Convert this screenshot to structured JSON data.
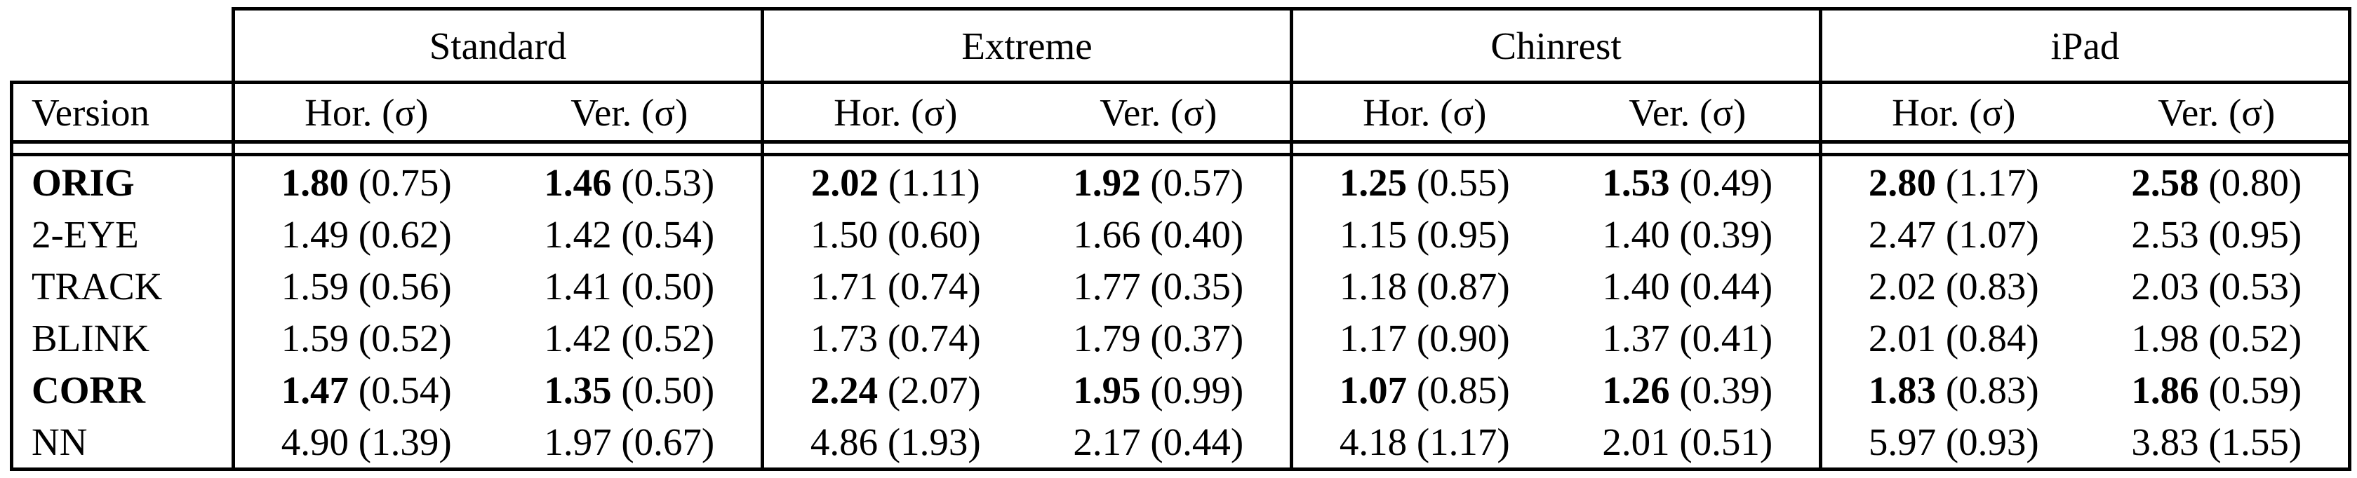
{
  "table": {
    "groups": [
      {
        "label": "Standard"
      },
      {
        "label": "Extreme"
      },
      {
        "label": "Chinrest"
      },
      {
        "label": "iPad"
      }
    ],
    "version_header": "Version",
    "sub_headers": {
      "hor": "Hor. (σ)",
      "ver": "Ver. (σ)"
    },
    "rows": [
      {
        "version": "ORIG",
        "bold": true,
        "cells": [
          {
            "mean": "1.80",
            "sigma": "(0.75)"
          },
          {
            "mean": "1.46",
            "sigma": "(0.53)"
          },
          {
            "mean": "2.02",
            "sigma": "(1.11)"
          },
          {
            "mean": "1.92",
            "sigma": "(0.57)"
          },
          {
            "mean": "1.25",
            "sigma": "(0.55)"
          },
          {
            "mean": "1.53",
            "sigma": "(0.49)"
          },
          {
            "mean": "2.80",
            "sigma": "(1.17)"
          },
          {
            "mean": "2.58",
            "sigma": "(0.80)"
          }
        ]
      },
      {
        "version": "2-EYE",
        "bold": false,
        "cells": [
          {
            "mean": "1.49",
            "sigma": "(0.62)"
          },
          {
            "mean": "1.42",
            "sigma": "(0.54)"
          },
          {
            "mean": "1.50",
            "sigma": "(0.60)"
          },
          {
            "mean": "1.66",
            "sigma": "(0.40)"
          },
          {
            "mean": "1.15",
            "sigma": "(0.95)"
          },
          {
            "mean": "1.40",
            "sigma": "(0.39)"
          },
          {
            "mean": "2.47",
            "sigma": "(1.07)"
          },
          {
            "mean": "2.53",
            "sigma": "(0.95)"
          }
        ]
      },
      {
        "version": "TRACK",
        "bold": false,
        "cells": [
          {
            "mean": "1.59",
            "sigma": "(0.56)"
          },
          {
            "mean": "1.41",
            "sigma": "(0.50)"
          },
          {
            "mean": "1.71",
            "sigma": "(0.74)"
          },
          {
            "mean": "1.77",
            "sigma": "(0.35)"
          },
          {
            "mean": "1.18",
            "sigma": "(0.87)"
          },
          {
            "mean": "1.40",
            "sigma": "(0.44)"
          },
          {
            "mean": "2.02",
            "sigma": "(0.83)"
          },
          {
            "mean": "2.03",
            "sigma": "(0.53)"
          }
        ]
      },
      {
        "version": "BLINK",
        "bold": false,
        "cells": [
          {
            "mean": "1.59",
            "sigma": "(0.52)"
          },
          {
            "mean": "1.42",
            "sigma": "(0.52)"
          },
          {
            "mean": "1.73",
            "sigma": "(0.74)"
          },
          {
            "mean": "1.79",
            "sigma": "(0.37)"
          },
          {
            "mean": "1.17",
            "sigma": "(0.90)"
          },
          {
            "mean": "1.37",
            "sigma": "(0.41)"
          },
          {
            "mean": "2.01",
            "sigma": "(0.84)"
          },
          {
            "mean": "1.98",
            "sigma": "(0.52)"
          }
        ]
      },
      {
        "version": "CORR",
        "bold": true,
        "cells": [
          {
            "mean": "1.47",
            "sigma": "(0.54)"
          },
          {
            "mean": "1.35",
            "sigma": "(0.50)"
          },
          {
            "mean": "2.24",
            "sigma": "(2.07)"
          },
          {
            "mean": "1.95",
            "sigma": "(0.99)"
          },
          {
            "mean": "1.07",
            "sigma": "(0.85)"
          },
          {
            "mean": "1.26",
            "sigma": "(0.39)"
          },
          {
            "mean": "1.83",
            "sigma": "(0.83)"
          },
          {
            "mean": "1.86",
            "sigma": "(0.59)"
          }
        ]
      },
      {
        "version": "NN",
        "bold": false,
        "cells": [
          {
            "mean": "4.90",
            "sigma": "(1.39)"
          },
          {
            "mean": "1.97",
            "sigma": "(0.67)"
          },
          {
            "mean": "4.86",
            "sigma": "(1.93)"
          },
          {
            "mean": "2.17",
            "sigma": "(0.44)"
          },
          {
            "mean": "4.18",
            "sigma": "(1.17)"
          },
          {
            "mean": "2.01",
            "sigma": "(0.51)"
          },
          {
            "mean": "5.97",
            "sigma": "(0.93)"
          },
          {
            "mean": "3.83",
            "sigma": "(1.55)"
          }
        ]
      }
    ]
  }
}
